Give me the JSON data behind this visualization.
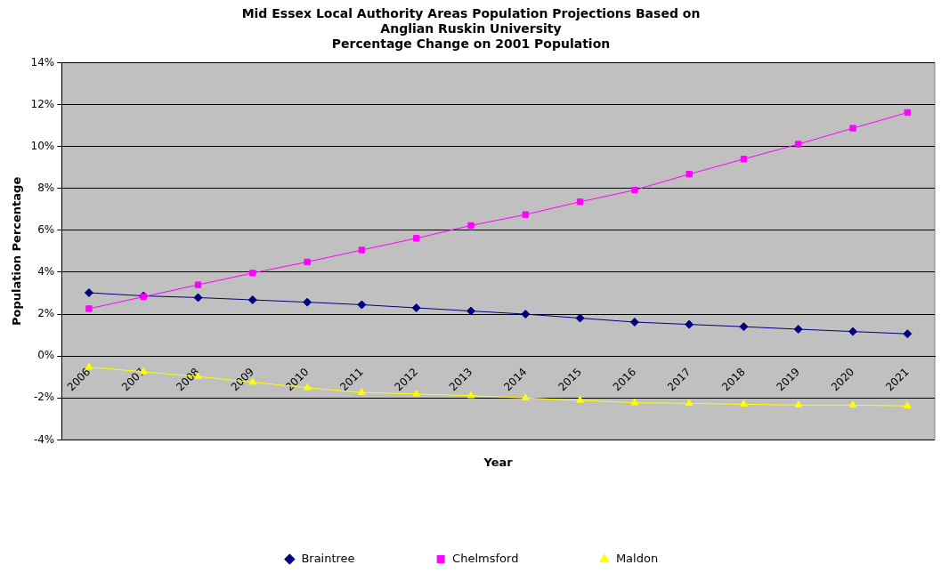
{
  "chart_data": {
    "type": "line",
    "title": [
      "Mid Essex Local Authority Areas Population Projections Based on",
      "Anglian Ruskin University",
      "Percentage Change on 2001 Population"
    ],
    "xlabel": "Year",
    "ylabel": "Population Percentage",
    "categories": [
      "2006",
      "2007",
      "2008",
      "2009",
      "2010",
      "2011",
      "2012",
      "2013",
      "2014",
      "2015",
      "2016",
      "2017",
      "2018",
      "2019",
      "2020",
      "2021"
    ],
    "series": [
      {
        "name": "Braintree",
        "color": "#000080",
        "marker": "diamond",
        "values": [
          3.02,
          2.87,
          2.79,
          2.68,
          2.57,
          2.45,
          2.3,
          2.15,
          2.0,
          1.81,
          1.62,
          1.51,
          1.4,
          1.28,
          1.17,
          1.06
        ]
      },
      {
        "name": "Chelmsford",
        "color": "#ff00ff",
        "marker": "square",
        "values": [
          2.26,
          2.83,
          3.4,
          3.96,
          4.49,
          5.06,
          5.62,
          6.23,
          6.75,
          7.36,
          7.92,
          8.68,
          9.4,
          10.11,
          10.87,
          11.62
        ]
      },
      {
        "name": "Maldon",
        "color": "#ffff00",
        "marker": "triangle",
        "values": [
          -0.53,
          -0.75,
          -0.98,
          -1.25,
          -1.51,
          -1.74,
          -1.81,
          -1.89,
          -2.0,
          -2.11,
          -2.23,
          -2.26,
          -2.3,
          -2.34,
          -2.34,
          -2.38
        ]
      }
    ],
    "ylim": [
      -4,
      14
    ],
    "yticks": [
      {
        "value": -4,
        "label": "-4%"
      },
      {
        "value": -2,
        "label": "-2%"
      },
      {
        "value": 0,
        "label": "0%"
      },
      {
        "value": 2,
        "label": "2%"
      },
      {
        "value": 4,
        "label": "4%"
      },
      {
        "value": 6,
        "label": "6%"
      },
      {
        "value": 8,
        "label": "8%"
      },
      {
        "value": 10,
        "label": "10%"
      },
      {
        "value": 12,
        "label": "12%"
      },
      {
        "value": 14,
        "label": "14%"
      }
    ],
    "grid": "y",
    "legend": "bottom",
    "line_style": "solid"
  }
}
